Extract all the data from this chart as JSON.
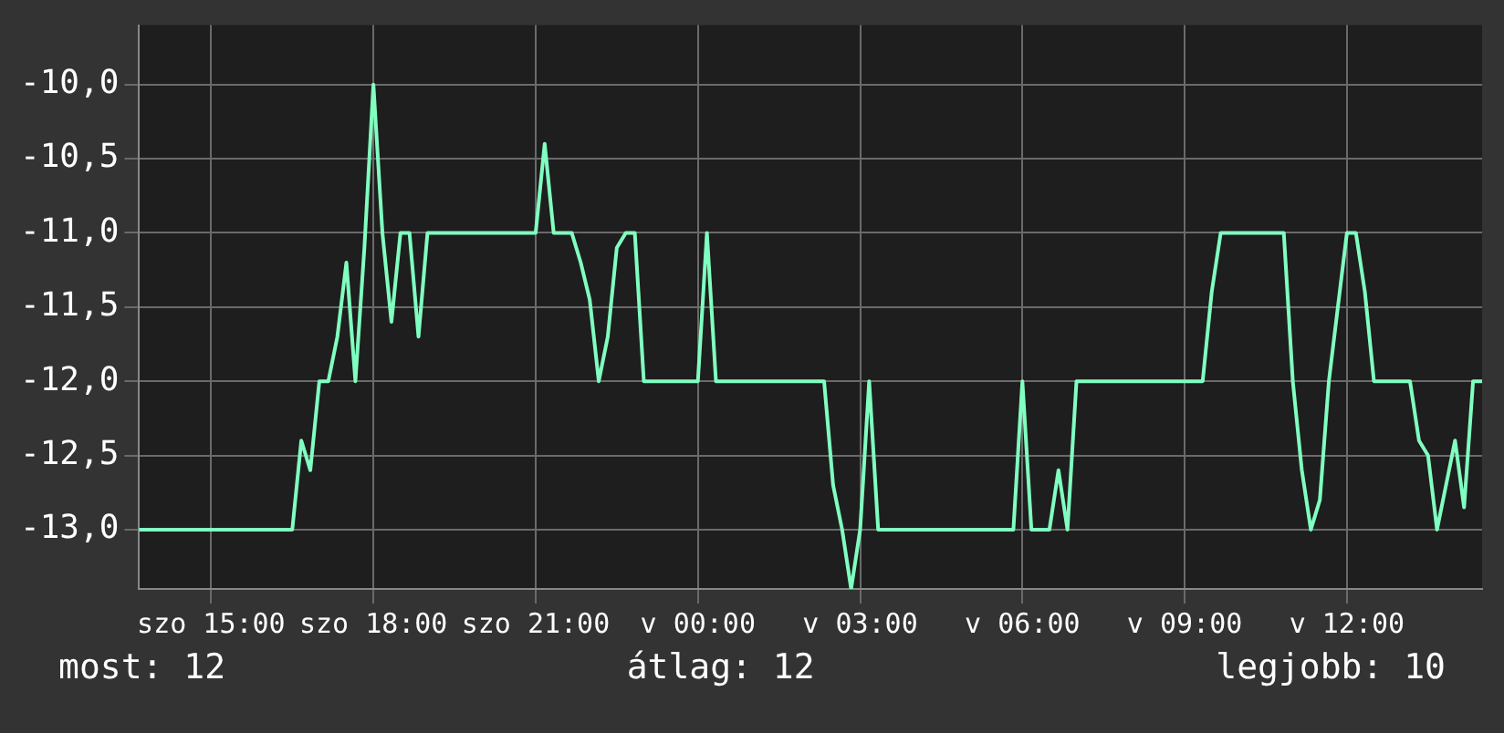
{
  "chart_data": {
    "type": "line",
    "legend": false,
    "marker": "none",
    "grid": true,
    "categories": [
      null,
      null,
      null,
      null,
      null,
      null,
      null,
      null,
      "szo 15:00",
      null,
      null,
      null,
      null,
      null,
      null,
      null,
      null,
      null,
      null,
      null,
      null,
      null,
      null,
      null,
      null,
      null,
      "szo 18:00",
      null,
      null,
      null,
      null,
      null,
      null,
      null,
      null,
      null,
      null,
      null,
      null,
      null,
      null,
      null,
      null,
      null,
      "szo 21:00",
      null,
      null,
      null,
      null,
      null,
      null,
      null,
      null,
      null,
      null,
      null,
      null,
      null,
      null,
      null,
      null,
      null,
      "v 00:00",
      null,
      null,
      null,
      null,
      null,
      null,
      null,
      null,
      null,
      null,
      null,
      null,
      null,
      null,
      null,
      null,
      null,
      "v 03:00",
      null,
      null,
      null,
      null,
      null,
      null,
      null,
      null,
      null,
      null,
      null,
      null,
      null,
      null,
      null,
      null,
      null,
      "v 06:00",
      null,
      null,
      null,
      null,
      null,
      null,
      null,
      null,
      null,
      null,
      null,
      null,
      null,
      null,
      null,
      null,
      null,
      "v 09:00",
      null,
      null,
      null,
      null,
      null,
      null,
      null,
      null,
      null,
      null,
      null,
      null,
      null,
      null,
      null,
      null,
      null,
      "v 12:00",
      null,
      null,
      null,
      null,
      null,
      null,
      null,
      null,
      null,
      null,
      null,
      null,
      null,
      null,
      null
    ],
    "ylim": [
      -13.4,
      -9.6
    ],
    "yticks": [
      {
        "value": -13,
        "label": "-13,0"
      },
      {
        "value": -12.5,
        "label": "-12,5"
      },
      {
        "value": -12,
        "label": "-12,0"
      },
      {
        "value": -11.5,
        "label": "-11,5"
      },
      {
        "value": -11,
        "label": "-11,0"
      },
      {
        "value": -10.5,
        "label": "-10,5"
      },
      {
        "value": -10,
        "label": "-10,0"
      }
    ],
    "annotations": [
      "most: 12",
      "átlag: 12",
      "legjobb: 10"
    ],
    "series": [
      {
        "color": "#80ffc0",
        "values": [
          -13,
          -13,
          -13,
          -13,
          -13,
          -13,
          -13,
          -13,
          -13,
          -13,
          -13,
          -13,
          -13,
          -13,
          -13,
          -13,
          -13,
          -13,
          -12.4,
          -12.6,
          -12,
          -12,
          -11.7,
          -11.2,
          -12,
          -11.1,
          -10,
          -11,
          -11.6,
          -11,
          -11,
          -11.7,
          -11,
          -11,
          -11,
          -11,
          -11,
          -11,
          -11,
          -11,
          -11,
          -11,
          -11,
          -11,
          -11,
          -10.4,
          -11,
          -11,
          -11,
          -11.2,
          -11.45,
          -12,
          -11.7,
          -11.1,
          -11,
          -11,
          -12,
          -12,
          -12,
          -12,
          -12,
          -12,
          -12,
          -11,
          -12,
          -12,
          -12,
          -12,
          -12,
          -12,
          -12,
          -12,
          -12,
          -12,
          -12,
          -12,
          -12,
          -12.7,
          -13,
          -13.4,
          -13,
          -12,
          -13,
          -13,
          -13,
          -13,
          -13,
          -13,
          -13,
          -13,
          -13,
          -13,
          -13,
          -13,
          -13,
          -13,
          -13,
          -13,
          -12,
          -13,
          -13,
          -13,
          -12.6,
          -13,
          -12,
          -12,
          -12,
          -12,
          -12,
          -12,
          -12,
          -12,
          -12,
          -12,
          -12,
          -12,
          -12,
          -12,
          -12,
          -11.4,
          -11,
          -11,
          -11,
          -11,
          -11,
          -11,
          -11,
          -11,
          -12,
          -12.6,
          -13,
          -12.8,
          -12,
          -11.5,
          -11,
          -11,
          -11.4,
          -12,
          -12,
          -12,
          -12,
          -12,
          -12.4,
          -12.5,
          -13,
          -12.7,
          -12.4,
          -12.85,
          -12,
          -12
        ]
      }
    ]
  }
}
